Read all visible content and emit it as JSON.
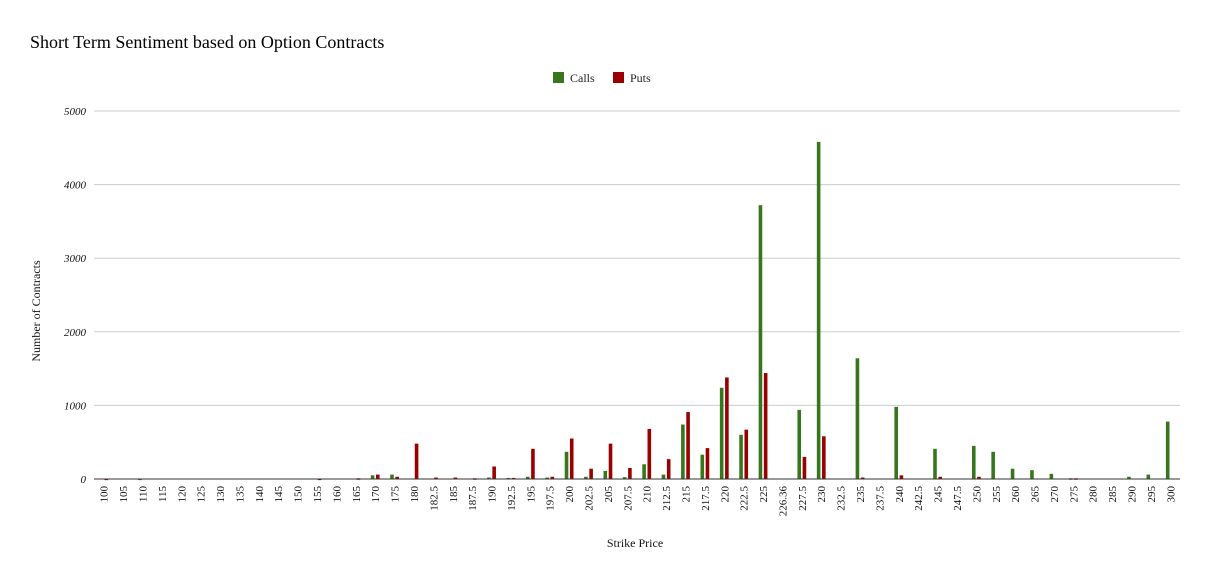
{
  "chart_data": {
    "type": "bar",
    "title": "Short Term Sentiment based on Option Contracts",
    "xlabel": "Strike Price",
    "ylabel": "Number of Contracts",
    "ylim": [
      0,
      5000
    ],
    "yticks": [
      0,
      1000,
      2000,
      3000,
      4000,
      5000
    ],
    "grid": true,
    "legend_position": "top-center",
    "categories": [
      "100",
      "105",
      "110",
      "115",
      "120",
      "125",
      "130",
      "135",
      "140",
      "145",
      "150",
      "155",
      "160",
      "165",
      "170",
      "175",
      "180",
      "182.5",
      "185",
      "187.5",
      "190",
      "192.5",
      "195",
      "197.5",
      "200",
      "202.5",
      "205",
      "207.5",
      "210",
      "212.5",
      "215",
      "217.5",
      "220",
      "222.5",
      "225",
      "226.36",
      "227.5",
      "230",
      "232.5",
      "235",
      "237.5",
      "240",
      "242.5",
      "245",
      "247.5",
      "250",
      "255",
      "260",
      "265",
      "270",
      "275",
      "280",
      "285",
      "290",
      "295",
      "300"
    ],
    "series": [
      {
        "name": "Calls",
        "color": "#38761d",
        "values": [
          0,
          0,
          5,
          0,
          0,
          0,
          0,
          0,
          0,
          0,
          0,
          0,
          0,
          0,
          50,
          60,
          0,
          0,
          0,
          0,
          20,
          15,
          30,
          20,
          370,
          30,
          110,
          25,
          200,
          60,
          740,
          330,
          1240,
          600,
          3720,
          0,
          940,
          4580,
          0,
          1640,
          0,
          980,
          0,
          410,
          0,
          450,
          370,
          140,
          120,
          70,
          10,
          0,
          0,
          30,
          60,
          780
        ]
      },
      {
        "name": "Puts",
        "color": "#990000",
        "values": [
          5,
          0,
          0,
          0,
          0,
          0,
          0,
          0,
          0,
          0,
          0,
          5,
          0,
          10,
          60,
          30,
          480,
          20,
          20,
          10,
          170,
          15,
          410,
          30,
          550,
          140,
          480,
          150,
          680,
          270,
          910,
          420,
          1380,
          670,
          1440,
          0,
          300,
          580,
          0,
          20,
          0,
          50,
          0,
          30,
          0,
          30,
          0,
          0,
          0,
          0,
          10,
          0,
          0,
          0,
          0,
          0
        ]
      }
    ]
  }
}
